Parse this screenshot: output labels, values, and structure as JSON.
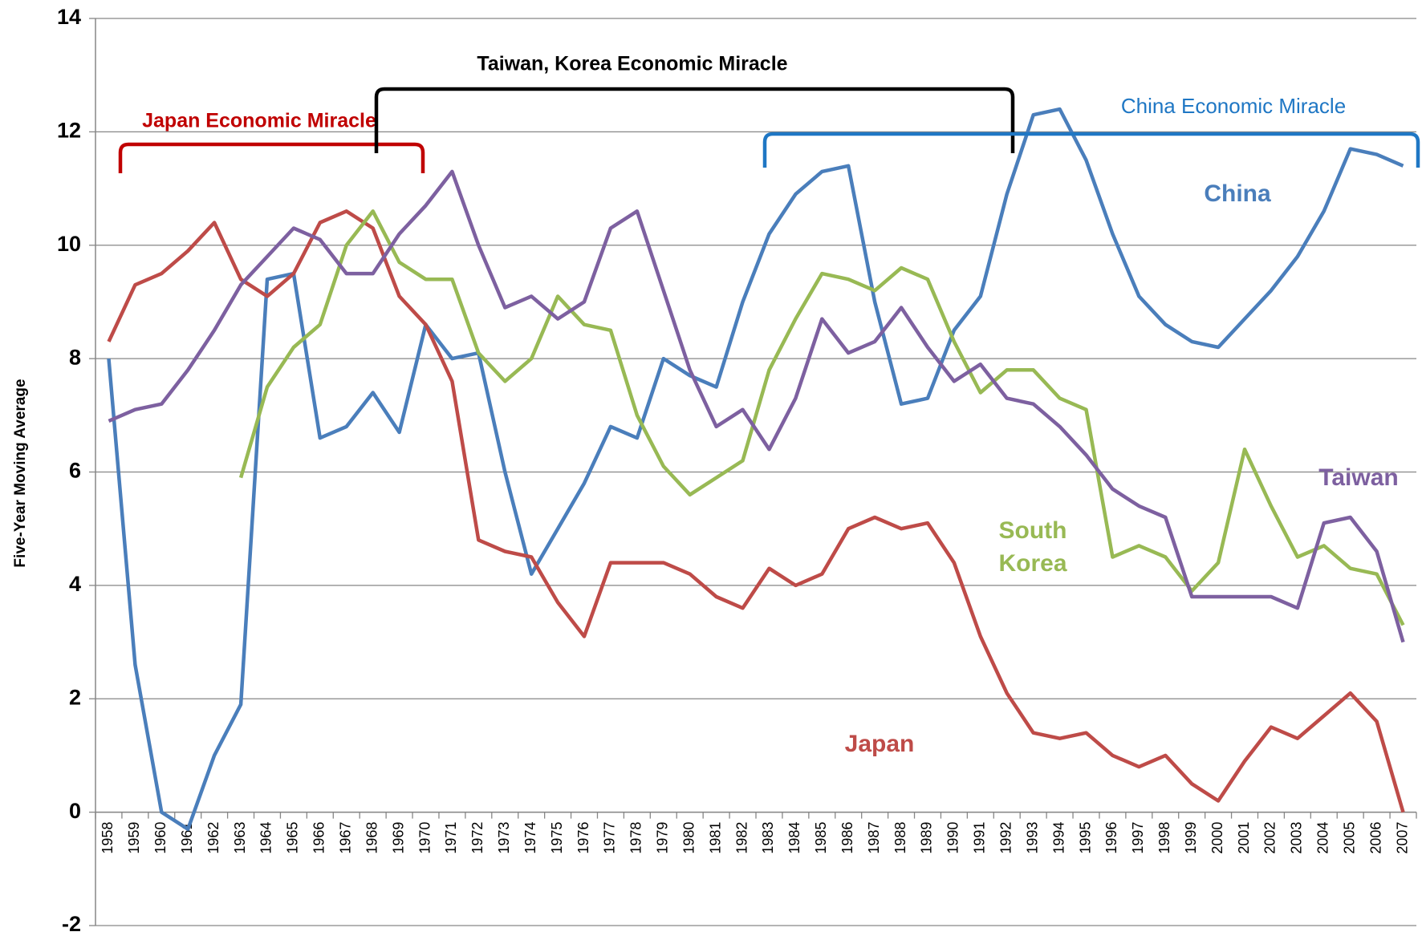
{
  "chart_data": {
    "type": "line",
    "y_label": "Five-Year Moving Average",
    "categories": [
      "1958",
      "1959",
      "1960",
      "1961",
      "1962",
      "1963",
      "1964",
      "1965",
      "1966",
      "1967",
      "1968",
      "1969",
      "1970",
      "1971",
      "1972",
      "1973",
      "1974",
      "1975",
      "1976",
      "1977",
      "1978",
      "1979",
      "1980",
      "1981",
      "1982",
      "1983",
      "1984",
      "1985",
      "1986",
      "1987",
      "1988",
      "1989",
      "1990",
      "1991",
      "1992",
      "1993",
      "1994",
      "1995",
      "1996",
      "1997",
      "1998",
      "1999",
      "2000",
      "2001",
      "2002",
      "2003",
      "2004",
      "2005",
      "2006",
      "2007"
    ],
    "series": [
      {
        "name": "China",
        "color": "#4a7ebb",
        "values": [
          8.0,
          2.6,
          0.0,
          -0.3,
          1.0,
          1.9,
          9.4,
          9.5,
          6.6,
          6.8,
          7.4,
          6.7,
          8.6,
          8.0,
          8.1,
          6.0,
          4.2,
          5.0,
          5.8,
          6.8,
          6.6,
          8.0,
          7.7,
          7.5,
          9.0,
          10.2,
          10.9,
          11.3,
          11.4,
          9.0,
          7.2,
          7.3,
          8.5,
          9.1,
          10.9,
          12.3,
          12.4,
          11.5,
          10.2,
          9.1,
          8.6,
          8.3,
          8.2,
          8.7,
          9.2,
          9.8,
          10.6,
          11.7,
          11.6,
          11.4
        ]
      },
      {
        "name": "Japan",
        "color": "#be4b48",
        "values": [
          8.3,
          9.3,
          9.5,
          9.9,
          10.4,
          9.4,
          9.1,
          9.5,
          10.4,
          10.6,
          10.3,
          9.1,
          8.6,
          7.6,
          4.8,
          4.6,
          4.5,
          3.7,
          3.1,
          4.4,
          4.4,
          4.4,
          4.2,
          3.8,
          3.6,
          4.3,
          4.0,
          4.2,
          5.0,
          5.2,
          5.0,
          5.1,
          4.4,
          3.1,
          2.1,
          1.4,
          1.3,
          1.4,
          1.0,
          0.8,
          1.0,
          0.5,
          0.2,
          0.9,
          1.5,
          1.3,
          1.7,
          2.1,
          1.6,
          0.0
        ]
      },
      {
        "name": "South Korea",
        "color": "#98b954",
        "values": [
          null,
          null,
          null,
          null,
          null,
          5.9,
          7.5,
          8.2,
          8.6,
          10.0,
          10.6,
          9.7,
          9.4,
          9.4,
          8.1,
          7.6,
          8.0,
          9.1,
          8.6,
          8.5,
          7.0,
          6.1,
          5.6,
          5.9,
          6.2,
          7.8,
          8.7,
          9.5,
          9.4,
          9.2,
          9.6,
          9.4,
          8.3,
          7.4,
          7.8,
          7.8,
          7.3,
          7.1,
          4.5,
          4.7,
          4.5,
          3.9,
          4.4,
          6.4,
          5.4,
          4.5,
          4.7,
          4.3,
          4.2,
          3.3
        ]
      },
      {
        "name": "Taiwan",
        "color": "#7d60a0",
        "values": [
          6.9,
          7.1,
          7.2,
          7.8,
          8.5,
          9.3,
          9.8,
          10.3,
          10.1,
          9.5,
          9.5,
          10.2,
          10.7,
          11.3,
          10.0,
          8.9,
          9.1,
          8.7,
          9.0,
          10.3,
          10.6,
          9.2,
          7.8,
          6.8,
          7.1,
          6.4,
          7.3,
          8.7,
          8.1,
          8.3,
          8.9,
          8.2,
          7.6,
          7.9,
          7.3,
          7.2,
          6.8,
          6.3,
          5.7,
          5.4,
          5.2,
          3.8,
          3.8,
          3.8,
          3.8,
          3.6,
          5.1,
          5.2,
          4.6,
          3.0
        ]
      }
    ],
    "ylim": [
      -2,
      14
    ],
    "yticks": [
      -2,
      0,
      2,
      4,
      6,
      8,
      10,
      12,
      14
    ],
    "grid": true,
    "annotations": [
      {
        "text": "Japan Economic Miracle",
        "color": "#c00000"
      },
      {
        "text": "Taiwan, Korea Economic Miracle",
        "color": "#000000"
      },
      {
        "text": "China Economic Miracle",
        "color": "#1f77c4"
      }
    ]
  }
}
